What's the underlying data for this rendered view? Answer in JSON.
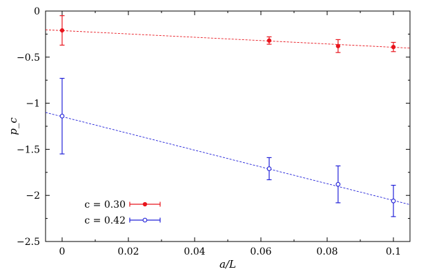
{
  "chart_data": {
    "type": "scatter",
    "xlabel": "a/L",
    "ylabel": "p_c",
    "xlim": [
      -0.005,
      0.105
    ],
    "ylim": [
      -2.5,
      0
    ],
    "x_ticks": [
      0,
      0.02,
      0.04,
      0.06,
      0.08,
      0.1
    ],
    "x_tick_labels": [
      "0",
      "0.02",
      "0.04",
      "0.06",
      "0.08",
      "0.1"
    ],
    "y_ticks": [
      0,
      -0.5,
      -1,
      -1.5,
      -2,
      -2.5
    ],
    "y_tick_labels": [
      "0",
      "−0.5",
      "−1",
      "−1.5",
      "−2",
      "−2.5"
    ],
    "grid": false,
    "legend_position": "bottom-left",
    "series": [
      {
        "name": "c = 0.30",
        "color": "#e8141c",
        "marker": "filled-circle",
        "points": [
          {
            "x": 0,
            "y": -0.21,
            "err": 0.16
          },
          {
            "x": 0.0625,
            "y": -0.32,
            "err": 0.04
          },
          {
            "x": 0.0833,
            "y": -0.38,
            "err": 0.07
          },
          {
            "x": 0.1,
            "y": -0.39,
            "err": 0.05
          }
        ],
        "fit_line": {
          "x_start": -0.005,
          "y_start": -0.203,
          "x_end": 0.105,
          "y_end": -0.402
        }
      },
      {
        "name": "c = 0.42",
        "color": "#2020d8",
        "marker": "open-circle",
        "points": [
          {
            "x": 0,
            "y": -1.14,
            "err": 0.41
          },
          {
            "x": 0.0625,
            "y": -1.71,
            "err": 0.12
          },
          {
            "x": 0.0833,
            "y": -1.88,
            "err": 0.2
          },
          {
            "x": 0.1,
            "y": -2.06,
            "err": 0.17
          }
        ],
        "fit_line": {
          "x_start": -0.005,
          "y_start": -1.1,
          "x_end": 0.105,
          "y_end": -2.1
        }
      }
    ]
  }
}
